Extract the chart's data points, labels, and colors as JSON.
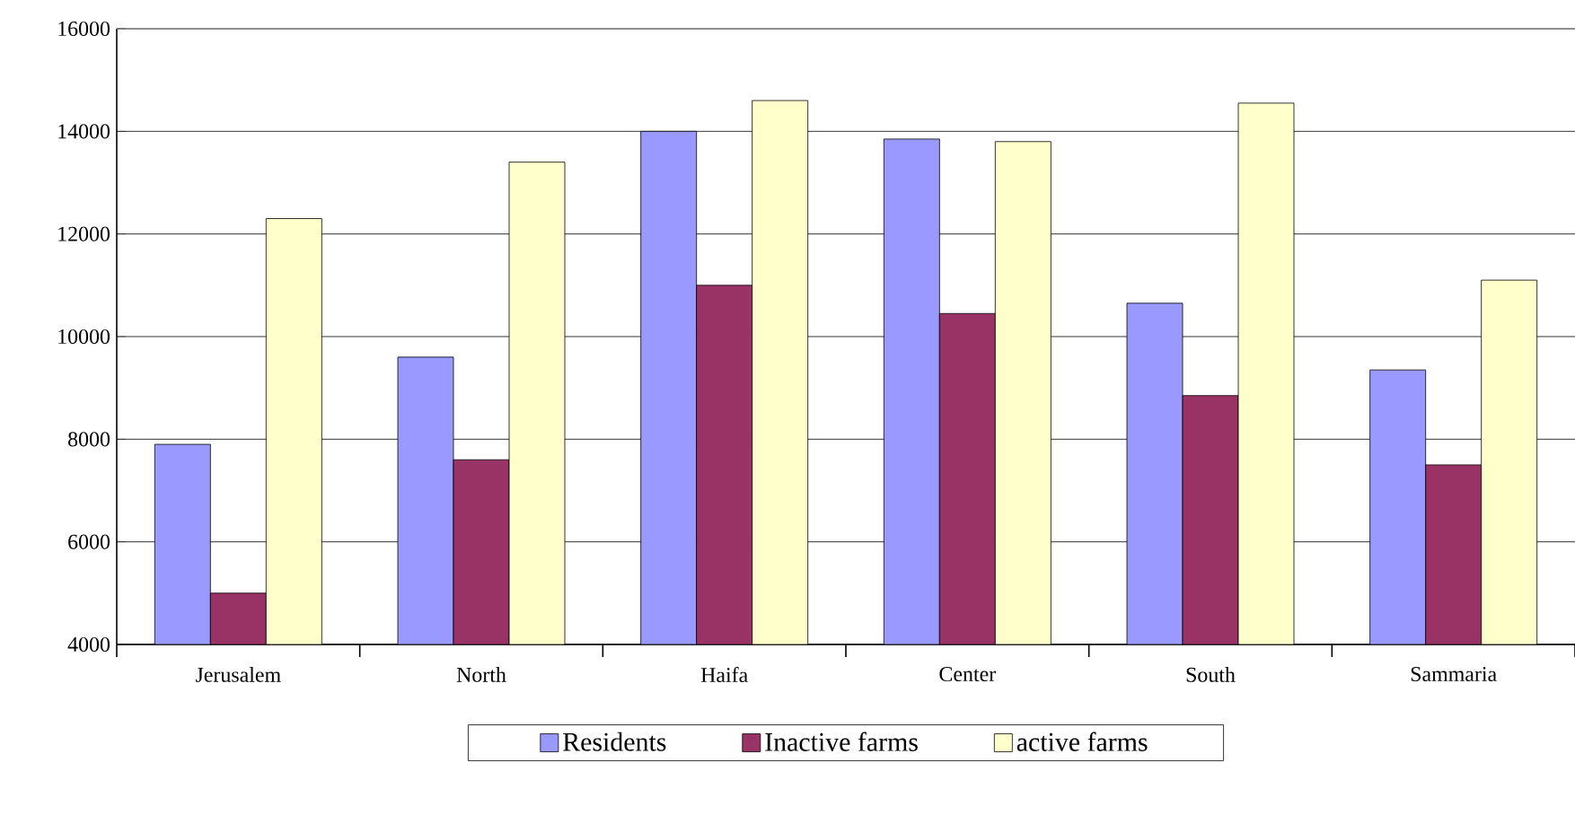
{
  "chart_data": {
    "type": "bar",
    "categories": [
      "Jerusalem",
      "North",
      "Haifa",
      "Center",
      "South",
      "Sammaria"
    ],
    "series": [
      {
        "name": "Residents",
        "color": "#9999ff",
        "values": [
          7900,
          9600,
          14000,
          13850,
          10650,
          9350
        ]
      },
      {
        "name": "Inactive farms",
        "color": "#993366",
        "values": [
          5000,
          7600,
          11000,
          10450,
          8850,
          7500
        ]
      },
      {
        "name": "active farms",
        "color": "#ffffcc",
        "values": [
          12300,
          13400,
          14600,
          13800,
          14550,
          11100
        ]
      }
    ],
    "ylim": [
      4000,
      16000
    ],
    "yticks": [
      4000,
      6000,
      8000,
      10000,
      12000,
      14000,
      16000
    ],
    "grid": "y",
    "legend": "bottom"
  }
}
